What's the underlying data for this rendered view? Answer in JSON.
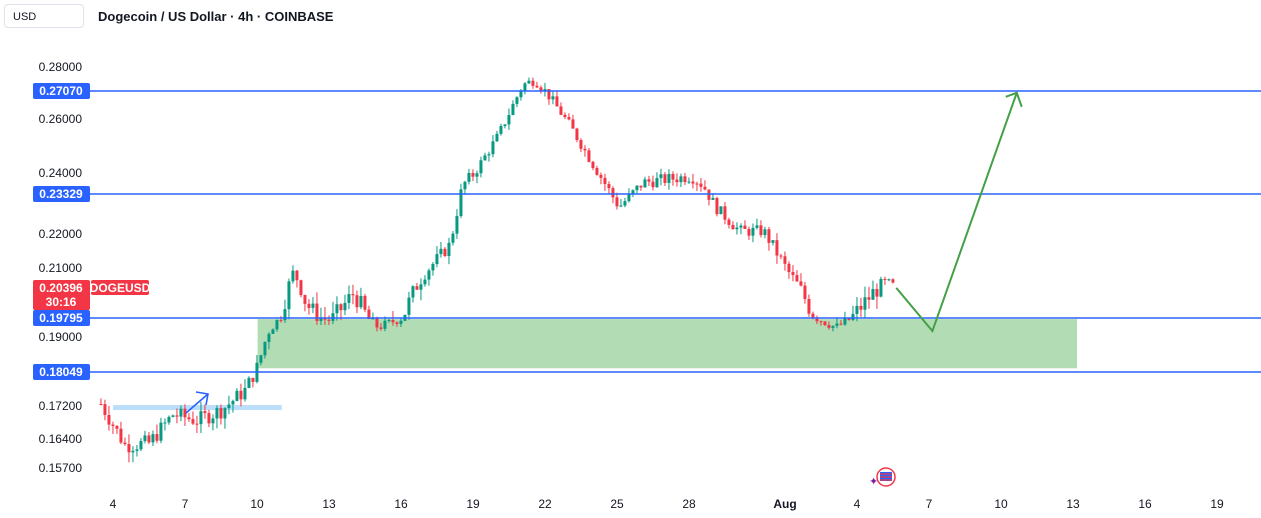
{
  "header": {
    "currency": "USD",
    "title": "Dogecoin / US Dollar · 4h · COINBASE"
  },
  "colors": {
    "up": "#089981",
    "down": "#f23645",
    "level_line": "#2962ff",
    "zone": "#a5d6a7",
    "projection": "#43a047",
    "price_badge": "#f23645"
  },
  "chart_data": {
    "type": "candlestick",
    "symbol": "DOGEUSD",
    "y_ticks": [
      "0.28000",
      "0.26000",
      "0.24000",
      "0.22000",
      "0.21000",
      "0.19000",
      "0.17200",
      "0.16400",
      "0.15700"
    ],
    "x_ticks": [
      "4",
      "7",
      "10",
      "13",
      "16",
      "19",
      "22",
      "25",
      "28",
      "Aug",
      "4",
      "7",
      "10",
      "13",
      "16",
      "19"
    ],
    "levels": [
      0.2707,
      0.23329,
      0.19795,
      0.18049
    ],
    "level_labels": [
      "0.27070",
      "0.23329",
      "0.19795",
      "0.18049"
    ],
    "current_price": "0.20396",
    "countdown": "30:16",
    "demand_zone": {
      "from": 0.1815,
      "to": 0.1975,
      "start": "Jul 10",
      "end": "Aug 13"
    },
    "close_series": [
      {
        "d": "Jul 3.5",
        "c": 0.1725
      },
      {
        "d": "Jul 4.5",
        "c": 0.1625
      },
      {
        "d": "Jul 5.5",
        "c": 0.163
      },
      {
        "d": "Jul 6.5",
        "c": 0.17
      },
      {
        "d": "Jul 7.5",
        "c": 0.1685
      },
      {
        "d": "Jul 8.5",
        "c": 0.171
      },
      {
        "d": "Jul 9.5",
        "c": 0.176
      },
      {
        "d": "Jul 10",
        "c": 0.182
      },
      {
        "d": "Jul 10.5",
        "c": 0.193
      },
      {
        "d": "Jul 11",
        "c": 0.199
      },
      {
        "d": "Jul 11.5",
        "c": 0.209
      },
      {
        "d": "Jul 12",
        "c": 0.201
      },
      {
        "d": "Jul 12.5",
        "c": 0.198
      },
      {
        "d": "Jul 13",
        "c": 0.197
      },
      {
        "d": "Jul 14",
        "c": 0.203
      },
      {
        "d": "Jul 15",
        "c": 0.194
      },
      {
        "d": "Jul 16",
        "c": 0.198
      },
      {
        "d": "Jul 17",
        "c": 0.209
      },
      {
        "d": "Jul 18",
        "c": 0.217
      },
      {
        "d": "Jul 18.5",
        "c": 0.236
      },
      {
        "d": "Jul 19",
        "c": 0.24
      },
      {
        "d": "Jul 20",
        "c": 0.254
      },
      {
        "d": "Jul 21",
        "c": 0.273
      },
      {
        "d": "Jul 21.5",
        "c": 0.275
      },
      {
        "d": "Jul 22",
        "c": 0.27
      },
      {
        "d": "Jul 23",
        "c": 0.257
      },
      {
        "d": "Jul 24",
        "c": 0.242
      },
      {
        "d": "Jul 25",
        "c": 0.229
      },
      {
        "d": "Jul 26",
        "c": 0.237
      },
      {
        "d": "Jul 27",
        "c": 0.238
      },
      {
        "d": "Jul 28",
        "c": 0.239
      },
      {
        "d": "Jul 28.5",
        "c": 0.236
      },
      {
        "d": "Jul 29",
        "c": 0.229
      },
      {
        "d": "Jul 30",
        "c": 0.221
      },
      {
        "d": "Jul 31",
        "c": 0.221
      },
      {
        "d": "Aug 1",
        "c": 0.209
      },
      {
        "d": "Aug 2",
        "c": 0.199
      },
      {
        "d": "Aug 3",
        "c": 0.194
      },
      {
        "d": "Aug 4",
        "c": 0.2
      },
      {
        "d": "Aug 5",
        "c": 0.2055
      },
      {
        "d": "Aug 5.5",
        "c": 0.204
      }
    ],
    "projection": [
      {
        "d": "Aug 5.5",
        "p": 0.204
      },
      {
        "d": "Aug 7",
        "p": 0.1925
      },
      {
        "d": "Aug 10.5",
        "p": 0.27
      }
    ],
    "breakout_line": {
      "from": "Jul 4",
      "to": "Jul 11",
      "p": 0.1715
    }
  }
}
